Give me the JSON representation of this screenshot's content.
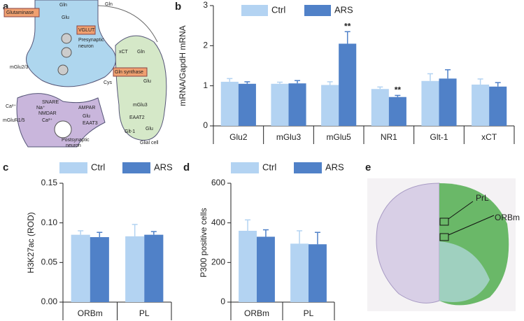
{
  "chart_data": [
    {
      "type": "bar",
      "ylabel": "mRNA/GapdH mRNA",
      "categories": [
        "Glu2",
        "mGlu3",
        "mGlu5",
        "NR1",
        "Glt-1",
        "xCT"
      ],
      "series": [
        {
          "name": "Ctrl",
          "color": "#b3d3f2",
          "values": [
            1.1,
            1.05,
            1.02,
            0.92,
            1.12,
            1.03
          ],
          "errors": [
            0.08,
            0.04,
            0.08,
            0.05,
            0.18,
            0.14
          ],
          "significance": [
            null,
            null,
            null,
            null,
            null,
            null
          ]
        },
        {
          "name": "ARS",
          "color": "#5081c8",
          "values": [
            1.05,
            1.06,
            2.05,
            0.72,
            1.18,
            0.98
          ],
          "errors": [
            0.05,
            0.07,
            0.3,
            0.04,
            0.22,
            0.1
          ],
          "significance": [
            null,
            null,
            "**",
            "**",
            null,
            null
          ]
        }
      ],
      "ylim": [
        0,
        3
      ],
      "yticks": [
        0,
        1,
        2,
        3
      ]
    },
    {
      "type": "bar",
      "ylabel": "H3K27ac (ROD)",
      "categories": [
        "ORBm",
        "PL"
      ],
      "series": [
        {
          "name": "Ctrl",
          "color": "#b3d3f2",
          "values": [
            0.085,
            0.083
          ],
          "errors": [
            0.005,
            0.015
          ]
        },
        {
          "name": "ARS",
          "color": "#5081c8",
          "values": [
            0.082,
            0.085
          ],
          "errors": [
            0.006,
            0.004
          ]
        }
      ],
      "ylim": [
        0,
        0.15
      ],
      "yticks": [
        {
          "value": 0,
          "label": "0.00"
        },
        {
          "value": 0.05,
          "label": "0.05"
        },
        {
          "value": 0.1,
          "label": "0.10"
        },
        {
          "value": 0.15,
          "label": "0.15"
        }
      ]
    },
    {
      "type": "bar",
      "ylabel": "P300 positive cells",
      "categories": [
        "ORBm",
        "PL"
      ],
      "series": [
        {
          "name": "Ctrl",
          "color": "#b3d3f2",
          "values": [
            360,
            295
          ],
          "errors": [
            55,
            65
          ]
        },
        {
          "name": "ARS",
          "color": "#5081c8",
          "values": [
            330,
            292
          ],
          "errors": [
            35,
            60
          ]
        }
      ],
      "ylim": [
        0,
        600
      ],
      "yticks": [
        0,
        200,
        400,
        600
      ]
    }
  ],
  "panels": {
    "labels": [
      "a",
      "b",
      "c",
      "d",
      "e"
    ]
  },
  "diagram": {
    "labels": [
      "Glutaminase",
      "Gln",
      "Glu",
      "VGLUT",
      "Presynaptic",
      "neuron",
      "Gln",
      "mGlu2/3",
      "xCT",
      "Gln",
      "Gln synthase",
      "Cys",
      "SNARE",
      "Glu",
      "Na⁺",
      "Ca²⁺",
      "NMDAR",
      "AMPAR",
      "Glu",
      "EAAT3",
      "EAAT2",
      "mGlu3",
      "Glt-1",
      "Glu",
      "mGluR1/5",
      "Ca²⁺",
      "Postsynaptic",
      "neuron",
      "Glial cell"
    ]
  },
  "image": {
    "labels": [
      "PrL",
      "ORBm"
    ]
  }
}
